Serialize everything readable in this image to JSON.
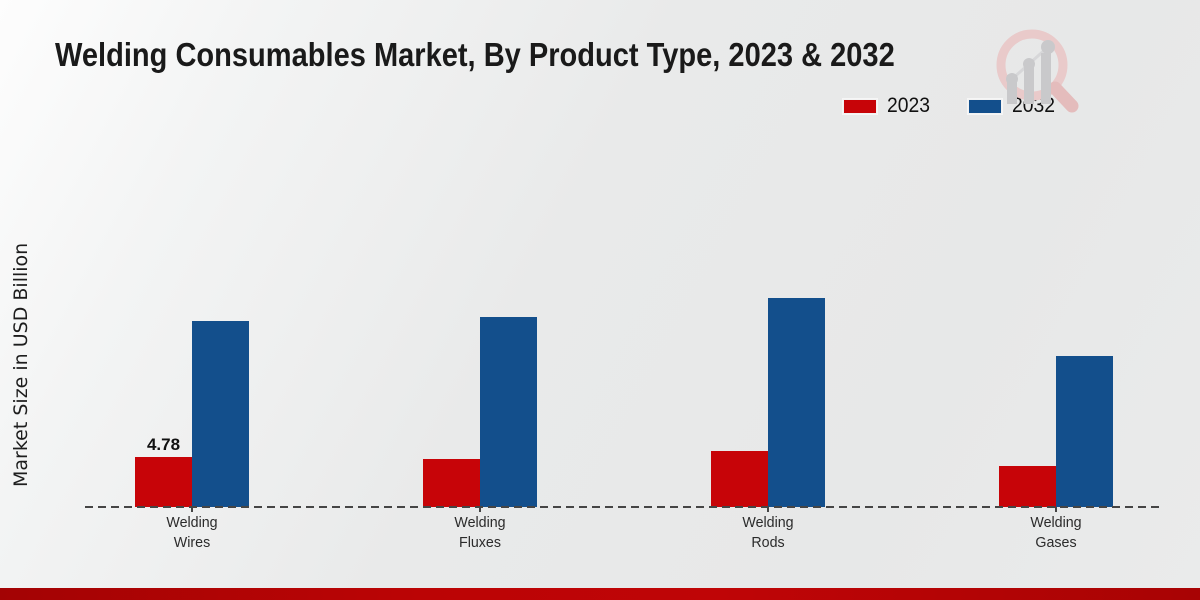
{
  "title": "Welding Consumables Market, By Product Type, 2023 & 2032",
  "y_axis_label": "Market Size in USD Billion",
  "colors": {
    "series_2023": "#c70408",
    "series_2032": "#134f8c",
    "baseline": "#454545",
    "footer_accent": "#b10405",
    "title_text": "#1a1a1a"
  },
  "chart_data": {
    "type": "bar",
    "title": "Welding Consumables Market, By Product Type, 2023 & 2032",
    "categories": [
      "Welding Wires",
      "Welding Fluxes",
      "Welding Rods",
      "Welding Gases"
    ],
    "series": [
      {
        "name": "2023",
        "color": "#c70408",
        "values": [
          4.78,
          4.6,
          5.35,
          3.9
        ],
        "value_labels": [
          "4.78",
          "",
          "",
          ""
        ]
      },
      {
        "name": "2032",
        "color": "#134f8c",
        "values": [
          17.7,
          18.1,
          19.9,
          14.4
        ],
        "value_labels": [
          "",
          "",
          "",
          ""
        ]
      }
    ],
    "xlabel": "",
    "ylabel": "Market Size in USD Billion",
    "ylim": [
      0,
      22
    ],
    "grid": false,
    "legend_position": "top-right",
    "x_axis_style": "dashed",
    "y_axis_ticks_visible": false
  },
  "watermark": {
    "icon": "magnifier-growth-chart-logo"
  }
}
